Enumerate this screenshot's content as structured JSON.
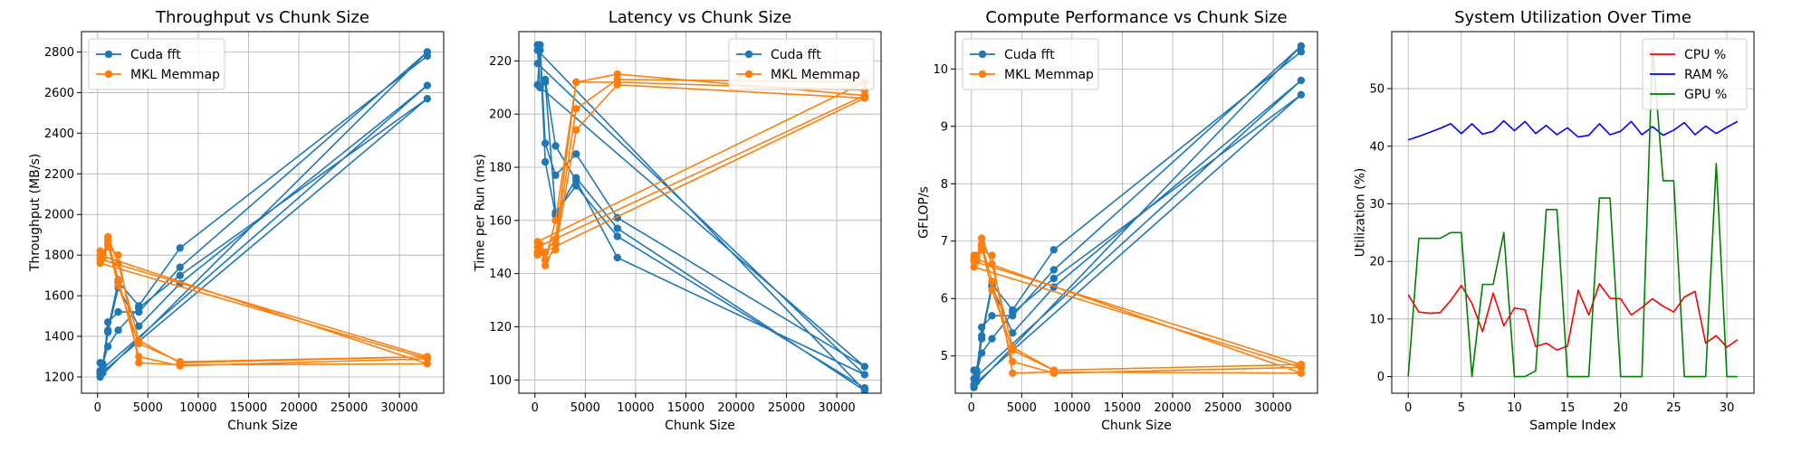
{
  "chart_data": [
    {
      "type": "line",
      "title": "Throughput vs Chunk Size",
      "xlabel": "Chunk Size",
      "ylabel": "Throughput (MB/s)",
      "xlim": [
        -1600,
        34400
      ],
      "ylim": [
        1120,
        2900
      ],
      "xticks": [
        0,
        5000,
        10000,
        15000,
        20000,
        25000,
        30000
      ],
      "yticks": [
        1200,
        1400,
        1600,
        1800,
        2000,
        2200,
        2400,
        2600,
        2800
      ],
      "grid": true,
      "legend": "upper-left",
      "markers": true,
      "series": [
        {
          "name": "Cuda fft",
          "color": "#1f77b4",
          "points": [
            [
              256,
              1270
            ],
            [
              512,
              1220
            ],
            [
              1024,
              1470
            ],
            [
              2048,
              1520
            ],
            [
              4096,
              1520
            ],
            [
              8192,
              1740
            ],
            [
              32768,
              2800
            ],
            [
              256,
              1200
            ],
            [
              512,
              1250
            ],
            [
              1024,
              1420
            ],
            [
              2048,
              1640
            ],
            [
              4096,
              1450
            ],
            [
              8192,
              1660
            ],
            [
              32768,
              2635
            ],
            [
              256,
              1230
            ],
            [
              512,
              1265
            ],
            [
              1024,
              1350
            ],
            [
              2048,
              1430
            ],
            [
              4096,
              1540
            ],
            [
              8192,
              1700
            ],
            [
              32768,
              2570
            ],
            [
              256,
              1215
            ],
            [
              512,
              1260
            ],
            [
              1024,
              1430
            ],
            [
              2048,
              1670
            ],
            [
              4096,
              1550
            ],
            [
              8192,
              1835
            ],
            [
              32768,
              2780
            ]
          ]
        },
        {
          "name": "MKL Memmap",
          "color": "#ff7f0e",
          "points": [
            [
              256,
              1820
            ],
            [
              512,
              1785
            ],
            [
              1024,
              1890
            ],
            [
              2048,
              1760
            ],
            [
              4096,
              1380
            ],
            [
              8192,
              1270
            ],
            [
              32768,
              1300
            ],
            [
              256,
              1780
            ],
            [
              512,
              1800
            ],
            [
              1024,
              1870
            ],
            [
              2048,
              1680
            ],
            [
              4096,
              1300
            ],
            [
              8192,
              1255
            ],
            [
              32768,
              1290
            ],
            [
              256,
              1760
            ],
            [
              512,
              1795
            ],
            [
              1024,
              1840
            ],
            [
              2048,
              1800
            ],
            [
              4096,
              1270
            ],
            [
              8192,
              1260
            ],
            [
              32768,
              1265
            ],
            [
              256,
              1800
            ],
            [
              512,
              1810
            ],
            [
              1024,
              1855
            ],
            [
              2048,
              1650
            ],
            [
              4096,
              1365
            ],
            [
              8192,
              1275
            ],
            [
              32768,
              1300
            ]
          ]
        }
      ]
    },
    {
      "type": "line",
      "title": "Latency vs Chunk Size",
      "xlabel": "Chunk Size",
      "ylabel": "Time per Run (ms)",
      "xlim": [
        -1600,
        34400
      ],
      "ylim": [
        95,
        231
      ],
      "xticks": [
        0,
        5000,
        10000,
        15000,
        20000,
        25000,
        30000
      ],
      "yticks": [
        100,
        120,
        140,
        160,
        180,
        200,
        220
      ],
      "grid": true,
      "legend": "upper-right",
      "markers": true,
      "series": [
        {
          "name": "Cuda fft",
          "color": "#1f77b4",
          "points": [
            [
              256,
              226
            ],
            [
              512,
              210
            ],
            [
              1024,
              213
            ],
            [
              2048,
              188
            ],
            [
              4096,
              175
            ],
            [
              8192,
              146
            ],
            [
              32768,
              102
            ],
            [
              256,
              219
            ],
            [
              512,
              226
            ],
            [
              1024,
              189
            ],
            [
              2048,
              177
            ],
            [
              4096,
              185
            ],
            [
              8192,
              161
            ],
            [
              32768,
              105
            ],
            [
              256,
              211
            ],
            [
              512,
              224
            ],
            [
              1024,
              182
            ],
            [
              2048,
              162
            ],
            [
              4096,
              176
            ],
            [
              8192,
              157
            ],
            [
              32768,
              96
            ],
            [
              256,
              224
            ],
            [
              512,
              210
            ],
            [
              1024,
              212
            ],
            [
              2048,
              163
            ],
            [
              4096,
              173
            ],
            [
              8192,
              154
            ],
            [
              32768,
              97
            ]
          ]
        },
        {
          "name": "MKL Memmap",
          "color": "#ff7f0e",
          "points": [
            [
              256,
              148
            ],
            [
              512,
              151
            ],
            [
              1024,
              143
            ],
            [
              2048,
              151
            ],
            [
              4096,
              202
            ],
            [
              8192,
              213
            ],
            [
              32768,
              212
            ],
            [
              256,
              152
            ],
            [
              512,
              148
            ],
            [
              1024,
              145
            ],
            [
              2048,
              160
            ],
            [
              4096,
              212
            ],
            [
              8192,
              215
            ],
            [
              32768,
              207
            ],
            [
              256,
              150
            ],
            [
              512,
              149
            ],
            [
              1024,
              145
            ],
            [
              2048,
              149
            ],
            [
              4096,
              194
            ],
            [
              8192,
              211
            ],
            [
              32768,
              206
            ],
            [
              256,
              147
            ],
            [
              512,
              148
            ],
            [
              1024,
              148
            ],
            [
              2048,
              153
            ],
            [
              4096,
              212
            ],
            [
              8192,
              212
            ],
            [
              32768,
              209
            ]
          ]
        }
      ]
    },
    {
      "type": "line",
      "title": "Compute Performance vs Chunk Size",
      "xlabel": "Chunk Size",
      "ylabel": "GFLOP/s",
      "xlim": [
        -1600,
        34400
      ],
      "ylim": [
        4.35,
        10.65
      ],
      "xticks": [
        0,
        5000,
        10000,
        15000,
        20000,
        25000,
        30000
      ],
      "yticks": [
        5,
        6,
        7,
        8,
        9,
        10
      ],
      "grid": true,
      "legend": "upper-left",
      "markers": true,
      "series": [
        {
          "name": "Cuda fft",
          "color": "#1f77b4",
          "points": [
            [
              256,
              4.75
            ],
            [
              512,
              4.55
            ],
            [
              1024,
              5.5
            ],
            [
              2048,
              5.7
            ],
            [
              4096,
              5.7
            ],
            [
              8192,
              6.5
            ],
            [
              32768,
              10.4
            ],
            [
              256,
              4.45
            ],
            [
              512,
              4.65
            ],
            [
              1024,
              5.3
            ],
            [
              2048,
              6.2
            ],
            [
              4096,
              5.4
            ],
            [
              8192,
              6.2
            ],
            [
              32768,
              9.8
            ],
            [
              256,
              4.6
            ],
            [
              512,
              4.7
            ],
            [
              1024,
              5.05
            ],
            [
              2048,
              5.3
            ],
            [
              4096,
              5.75
            ],
            [
              8192,
              6.35
            ],
            [
              32768,
              9.55
            ],
            [
              256,
              4.5
            ],
            [
              512,
              4.75
            ],
            [
              1024,
              5.35
            ],
            [
              2048,
              6.25
            ],
            [
              4096,
              5.8
            ],
            [
              8192,
              6.85
            ],
            [
              32768,
              10.3
            ]
          ]
        },
        {
          "name": "MKL Memmap",
          "color": "#ff7f0e",
          "points": [
            [
              256,
              6.75
            ],
            [
              512,
              6.65
            ],
            [
              1024,
              7.05
            ],
            [
              2048,
              6.6
            ],
            [
              4096,
              5.15
            ],
            [
              8192,
              4.75
            ],
            [
              32768,
              4.85
            ],
            [
              256,
              6.65
            ],
            [
              512,
              6.7
            ],
            [
              1024,
              6.95
            ],
            [
              2048,
              6.3
            ],
            [
              4096,
              4.9
            ],
            [
              8192,
              4.7
            ],
            [
              32768,
              4.8
            ],
            [
              256,
              6.55
            ],
            [
              512,
              6.7
            ],
            [
              1024,
              6.85
            ],
            [
              2048,
              6.75
            ],
            [
              4096,
              4.7
            ],
            [
              8192,
              4.72
            ],
            [
              32768,
              4.7
            ],
            [
              256,
              6.7
            ],
            [
              512,
              6.75
            ],
            [
              1024,
              6.9
            ],
            [
              2048,
              6.15
            ],
            [
              4096,
              5.1
            ],
            [
              8192,
              4.75
            ],
            [
              32768,
              4.85
            ]
          ]
        }
      ]
    },
    {
      "type": "line",
      "title": "System Utilization Over Time",
      "xlabel": "Sample Index",
      "ylabel": "Utilization (%)",
      "xlim": [
        -1.55,
        32.55
      ],
      "ylim": [
        -2.9,
        59.9
      ],
      "xticks": [
        0,
        5,
        10,
        15,
        20,
        25,
        30
      ],
      "yticks": [
        0,
        10,
        20,
        30,
        40,
        50
      ],
      "grid": true,
      "legend": "upper-right",
      "markers": false,
      "x": [
        0,
        1,
        2,
        3,
        4,
        5,
        6,
        7,
        8,
        9,
        10,
        11,
        12,
        13,
        14,
        15,
        16,
        17,
        18,
        19,
        20,
        21,
        22,
        23,
        24,
        25,
        26,
        27,
        28,
        29,
        30,
        31
      ],
      "series": [
        {
          "name": "CPU %",
          "color": "#ff0000",
          "values": [
            14.2,
            11.2,
            11,
            11.1,
            13.2,
            15.8,
            12.7,
            7.8,
            14.5,
            8.8,
            11.9,
            11.6,
            5.2,
            5.8,
            4.6,
            5.3,
            15,
            10.7,
            16.1,
            13.6,
            13.5,
            10.7,
            12,
            13.5,
            12.2,
            11.2,
            13.8,
            14.8,
            5.8,
            7.1,
            5.1,
            6.4
          ]
        },
        {
          "name": "RAM %",
          "color": "#0000ff",
          "values": [
            41.1,
            41.7,
            42.4,
            43.1,
            43.9,
            42.2,
            43.9,
            42.1,
            42.6,
            44.4,
            42.7,
            44.3,
            42.2,
            43.6,
            42,
            43.2,
            41.6,
            41.9,
            43.9,
            42,
            42.6,
            44.3,
            42,
            43.4,
            41.9,
            42.8,
            44.1,
            42,
            43.5,
            42.2,
            43.3,
            44.3
          ]
        },
        {
          "name": "GPU %",
          "color": "#008000",
          "values": [
            0,
            24,
            24,
            24,
            25,
            25,
            0,
            16,
            16,
            25,
            0,
            0,
            1,
            29,
            29,
            0,
            0,
            0,
            31,
            31,
            0,
            0,
            0,
            57,
            34,
            34,
            0,
            0,
            0,
            37,
            0,
            0
          ]
        }
      ]
    }
  ]
}
